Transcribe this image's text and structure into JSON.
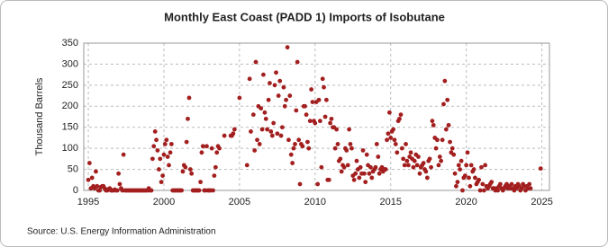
{
  "chart_data": {
    "type": "scatter",
    "title": "Monthly East Coast (PADD 1) Imports of Isobutane",
    "y_label": "Thousand Barrels",
    "source": "Source: U.S. Energy Information Administration",
    "color": "#a31f1f",
    "grid": true,
    "xlim": [
      1994.7,
      2025.5
    ],
    "xticks": [
      1995,
      2000,
      2005,
      2010,
      2015,
      2020,
      2025
    ],
    "ylim": [
      0,
      350
    ],
    "yticks": [
      0,
      50,
      100,
      150,
      200,
      250,
      300,
      350
    ],
    "x": [
      1995.0,
      1995.08,
      1995.17,
      1995.25,
      1995.33,
      1995.42,
      1995.5,
      1995.58,
      1995.67,
      1995.75,
      1995.83,
      1995.92,
      1996.0,
      1996.08,
      1996.17,
      1996.25,
      1996.33,
      1996.42,
      1996.5,
      1996.58,
      1996.67,
      1996.75,
      1996.83,
      1996.92,
      1997.0,
      1997.08,
      1997.17,
      1997.25,
      1997.33,
      1997.42,
      1997.5,
      1997.58,
      1997.67,
      1997.75,
      1997.83,
      1997.92,
      1998.0,
      1998.08,
      1998.17,
      1998.25,
      1998.33,
      1998.42,
      1998.5,
      1998.58,
      1998.67,
      1998.75,
      1998.83,
      1998.92,
      1999.0,
      1999.08,
      1999.17,
      1999.25,
      1999.33,
      1999.42,
      1999.5,
      1999.58,
      1999.67,
      1999.75,
      1999.83,
      1999.92,
      2000.0,
      2000.08,
      2000.17,
      2000.25,
      2000.33,
      2000.42,
      2000.5,
      2000.58,
      2000.67,
      2000.75,
      2000.83,
      2000.92,
      2001.0,
      2001.08,
      2001.17,
      2001.25,
      2001.33,
      2001.42,
      2001.5,
      2001.58,
      2001.67,
      2001.75,
      2001.83,
      2001.92,
      2002.0,
      2002.08,
      2002.17,
      2002.25,
      2002.33,
      2002.42,
      2002.5,
      2002.58,
      2002.67,
      2002.75,
      2002.83,
      2002.92,
      2003.0,
      2003.08,
      2003.17,
      2003.25,
      2003.33,
      2003.42,
      2003.5,
      2003.58,
      2003.67,
      2003.75,
      2003.83,
      2003.92,
      2004.0,
      2004.08,
      2004.17,
      2004.25,
      2004.33,
      2004.42,
      2004.5,
      2004.58,
      2004.67,
      2004.75,
      2004.83,
      2004.92,
      2005.0,
      2005.08,
      2005.17,
      2005.25,
      2005.33,
      2005.42,
      2005.5,
      2005.58,
      2005.67,
      2005.75,
      2005.83,
      2005.92,
      2006.0,
      2006.08,
      2006.17,
      2006.25,
      2006.33,
      2006.42,
      2006.5,
      2006.58,
      2006.67,
      2006.75,
      2006.83,
      2006.92,
      2007.0,
      2007.08,
      2007.17,
      2007.25,
      2007.33,
      2007.42,
      2007.5,
      2007.58,
      2007.67,
      2007.75,
      2007.83,
      2007.92,
      2008.0,
      2008.08,
      2008.17,
      2008.25,
      2008.33,
      2008.42,
      2008.5,
      2008.58,
      2008.67,
      2008.75,
      2008.83,
      2008.92,
      2009.0,
      2009.08,
      2009.17,
      2009.25,
      2009.33,
      2009.42,
      2009.5,
      2009.58,
      2009.67,
      2009.75,
      2009.83,
      2009.92,
      2010.0,
      2010.08,
      2010.17,
      2010.25,
      2010.33,
      2010.42,
      2010.5,
      2010.58,
      2010.67,
      2010.75,
      2010.83,
      2010.92,
      2011.0,
      2011.08,
      2011.17,
      2011.25,
      2011.33,
      2011.42,
      2011.5,
      2011.58,
      2011.67,
      2011.75,
      2011.83,
      2011.92,
      2012.0,
      2012.08,
      2012.17,
      2012.25,
      2012.33,
      2012.42,
      2012.5,
      2012.58,
      2012.67,
      2012.75,
      2012.83,
      2012.92,
      2013.0,
      2013.08,
      2013.17,
      2013.25,
      2013.33,
      2013.42,
      2013.5,
      2013.58,
      2013.67,
      2013.75,
      2013.83,
      2013.92,
      2014.0,
      2014.08,
      2014.17,
      2014.25,
      2014.33,
      2014.42,
      2014.5,
      2014.58,
      2014.67,
      2014.75,
      2014.83,
      2014.92,
      2015.0,
      2015.08,
      2015.17,
      2015.25,
      2015.33,
      2015.42,
      2015.5,
      2015.58,
      2015.67,
      2015.75,
      2015.83,
      2015.92,
      2016.0,
      2016.08,
      2016.17,
      2016.25,
      2016.33,
      2016.42,
      2016.5,
      2016.58,
      2016.67,
      2016.75,
      2016.83,
      2016.92,
      2017.0,
      2017.08,
      2017.17,
      2017.25,
      2017.33,
      2017.42,
      2017.5,
      2017.58,
      2017.67,
      2017.75,
      2017.83,
      2017.92,
      2018.0,
      2018.08,
      2018.17,
      2018.25,
      2018.33,
      2018.42,
      2018.5,
      2018.58,
      2018.67,
      2018.75,
      2018.83,
      2018.92,
      2019.0,
      2019.08,
      2019.17,
      2019.25,
      2019.33,
      2019.42,
      2019.5,
      2019.58,
      2019.67,
      2019.75,
      2019.83,
      2019.92,
      2020.0,
      2020.08,
      2020.17,
      2020.25,
      2020.33,
      2020.42,
      2020.5,
      2020.58,
      2020.67,
      2020.75,
      2020.83,
      2020.92,
      2021.0,
      2021.08,
      2021.17,
      2021.25,
      2021.33,
      2021.42,
      2021.5,
      2021.58,
      2021.67,
      2021.75,
      2021.83,
      2021.92,
      2022.0,
      2022.08,
      2022.17,
      2022.25,
      2022.33,
      2022.42,
      2022.5,
      2022.58,
      2022.67,
      2022.75,
      2022.83,
      2022.92,
      2023.0,
      2023.08,
      2023.17,
      2023.25,
      2023.33,
      2023.42,
      2023.5,
      2023.58,
      2023.67,
      2023.75,
      2023.83,
      2023.92,
      2024.0,
      2024.08,
      2024.17,
      2024.25,
      2024.92
    ],
    "values": [
      25,
      65,
      5,
      30,
      10,
      5,
      45,
      10,
      0,
      0,
      8,
      10,
      10,
      5,
      0,
      0,
      3,
      5,
      0,
      0,
      0,
      2,
      0,
      0,
      40,
      15,
      5,
      0,
      85,
      0,
      0,
      0,
      0,
      0,
      0,
      0,
      0,
      0,
      0,
      0,
      0,
      0,
      0,
      0,
      0,
      0,
      0,
      0,
      5,
      0,
      0,
      75,
      105,
      140,
      120,
      95,
      50,
      75,
      20,
      35,
      85,
      110,
      120,
      80,
      60,
      90,
      110,
      0,
      0,
      0,
      0,
      0,
      0,
      0,
      0,
      45,
      60,
      55,
      115,
      170,
      220,
      50,
      40,
      0,
      0,
      0,
      0,
      0,
      0,
      20,
      90,
      105,
      0,
      0,
      105,
      0,
      0,
      0,
      100,
      0,
      35,
      55,
      90,
      105,
      100,
      null,
      null,
      null,
      130,
      null,
      null,
      null,
      null,
      130,
      130,
      135,
      145,
      null,
      null,
      null,
      220,
      null,
      null,
      null,
      null,
      null,
      60,
      null,
      265,
      140,
      null,
      180,
      95,
      305,
      120,
      200,
      110,
      195,
      145,
      275,
      185,
      170,
      145,
      215,
      255,
      140,
      130,
      160,
      250,
      280,
      135,
      225,
      260,
      130,
      150,
      245,
      200,
      215,
      340,
      120,
      225,
      85,
      65,
      100,
      110,
      190,
      305,
      120,
      15,
      110,
      105,
      200,
      200,
      180,
      115,
      100,
      165,
      240,
      210,
      165,
      160,
      210,
      15,
      215,
      165,
      55,
      265,
      245,
      175,
      215,
      25,
      25,
      160,
      170,
      150,
      150,
      100,
      145,
      110,
      70,
      75,
      45,
      60,
      55,
      100,
      95,
      60,
      145,
      110,
      100,
      35,
      25,
      40,
      70,
      50,
      30,
      55,
      40,
      95,
      40,
      20,
      85,
      60,
      40,
      55,
      30,
      45,
      50,
      55,
      110,
      80,
      40,
      50,
      55,
      45,
      50,
      50,
      120,
      135,
      185,
      125,
      140,
      145,
      120,
      110,
      90,
      165,
      170,
      180,
      100,
      75,
      60,
      110,
      70,
      60,
      80,
      90,
      75,
      55,
      70,
      85,
      60,
      80,
      40,
      55,
      60,
      65,
      50,
      45,
      30,
      70,
      75,
      55,
      165,
      155,
      125,
      100,
      120,
      60,
      80,
      70,
      120,
      205,
      260,
      145,
      215,
      155,
      115,
      90,
      100,
      85,
      40,
      10,
      20,
      60,
      50,
      70,
      0,
      30,
      35,
      60,
      90,
      30,
      10,
      60,
      45,
      50,
      30,
      15,
      20,
      25,
      0,
      55,
      15,
      0,
      60,
      10,
      5,
      10,
      15,
      20,
      5,
      5,
      0,
      5,
      0,
      10,
      15,
      5,
      0,
      5,
      10,
      15,
      5,
      10,
      5,
      15,
      5,
      0,
      10,
      5,
      15,
      10,
      0,
      5,
      15,
      10,
      0,
      10,
      5,
      15,
      5,
      52
    ]
  }
}
